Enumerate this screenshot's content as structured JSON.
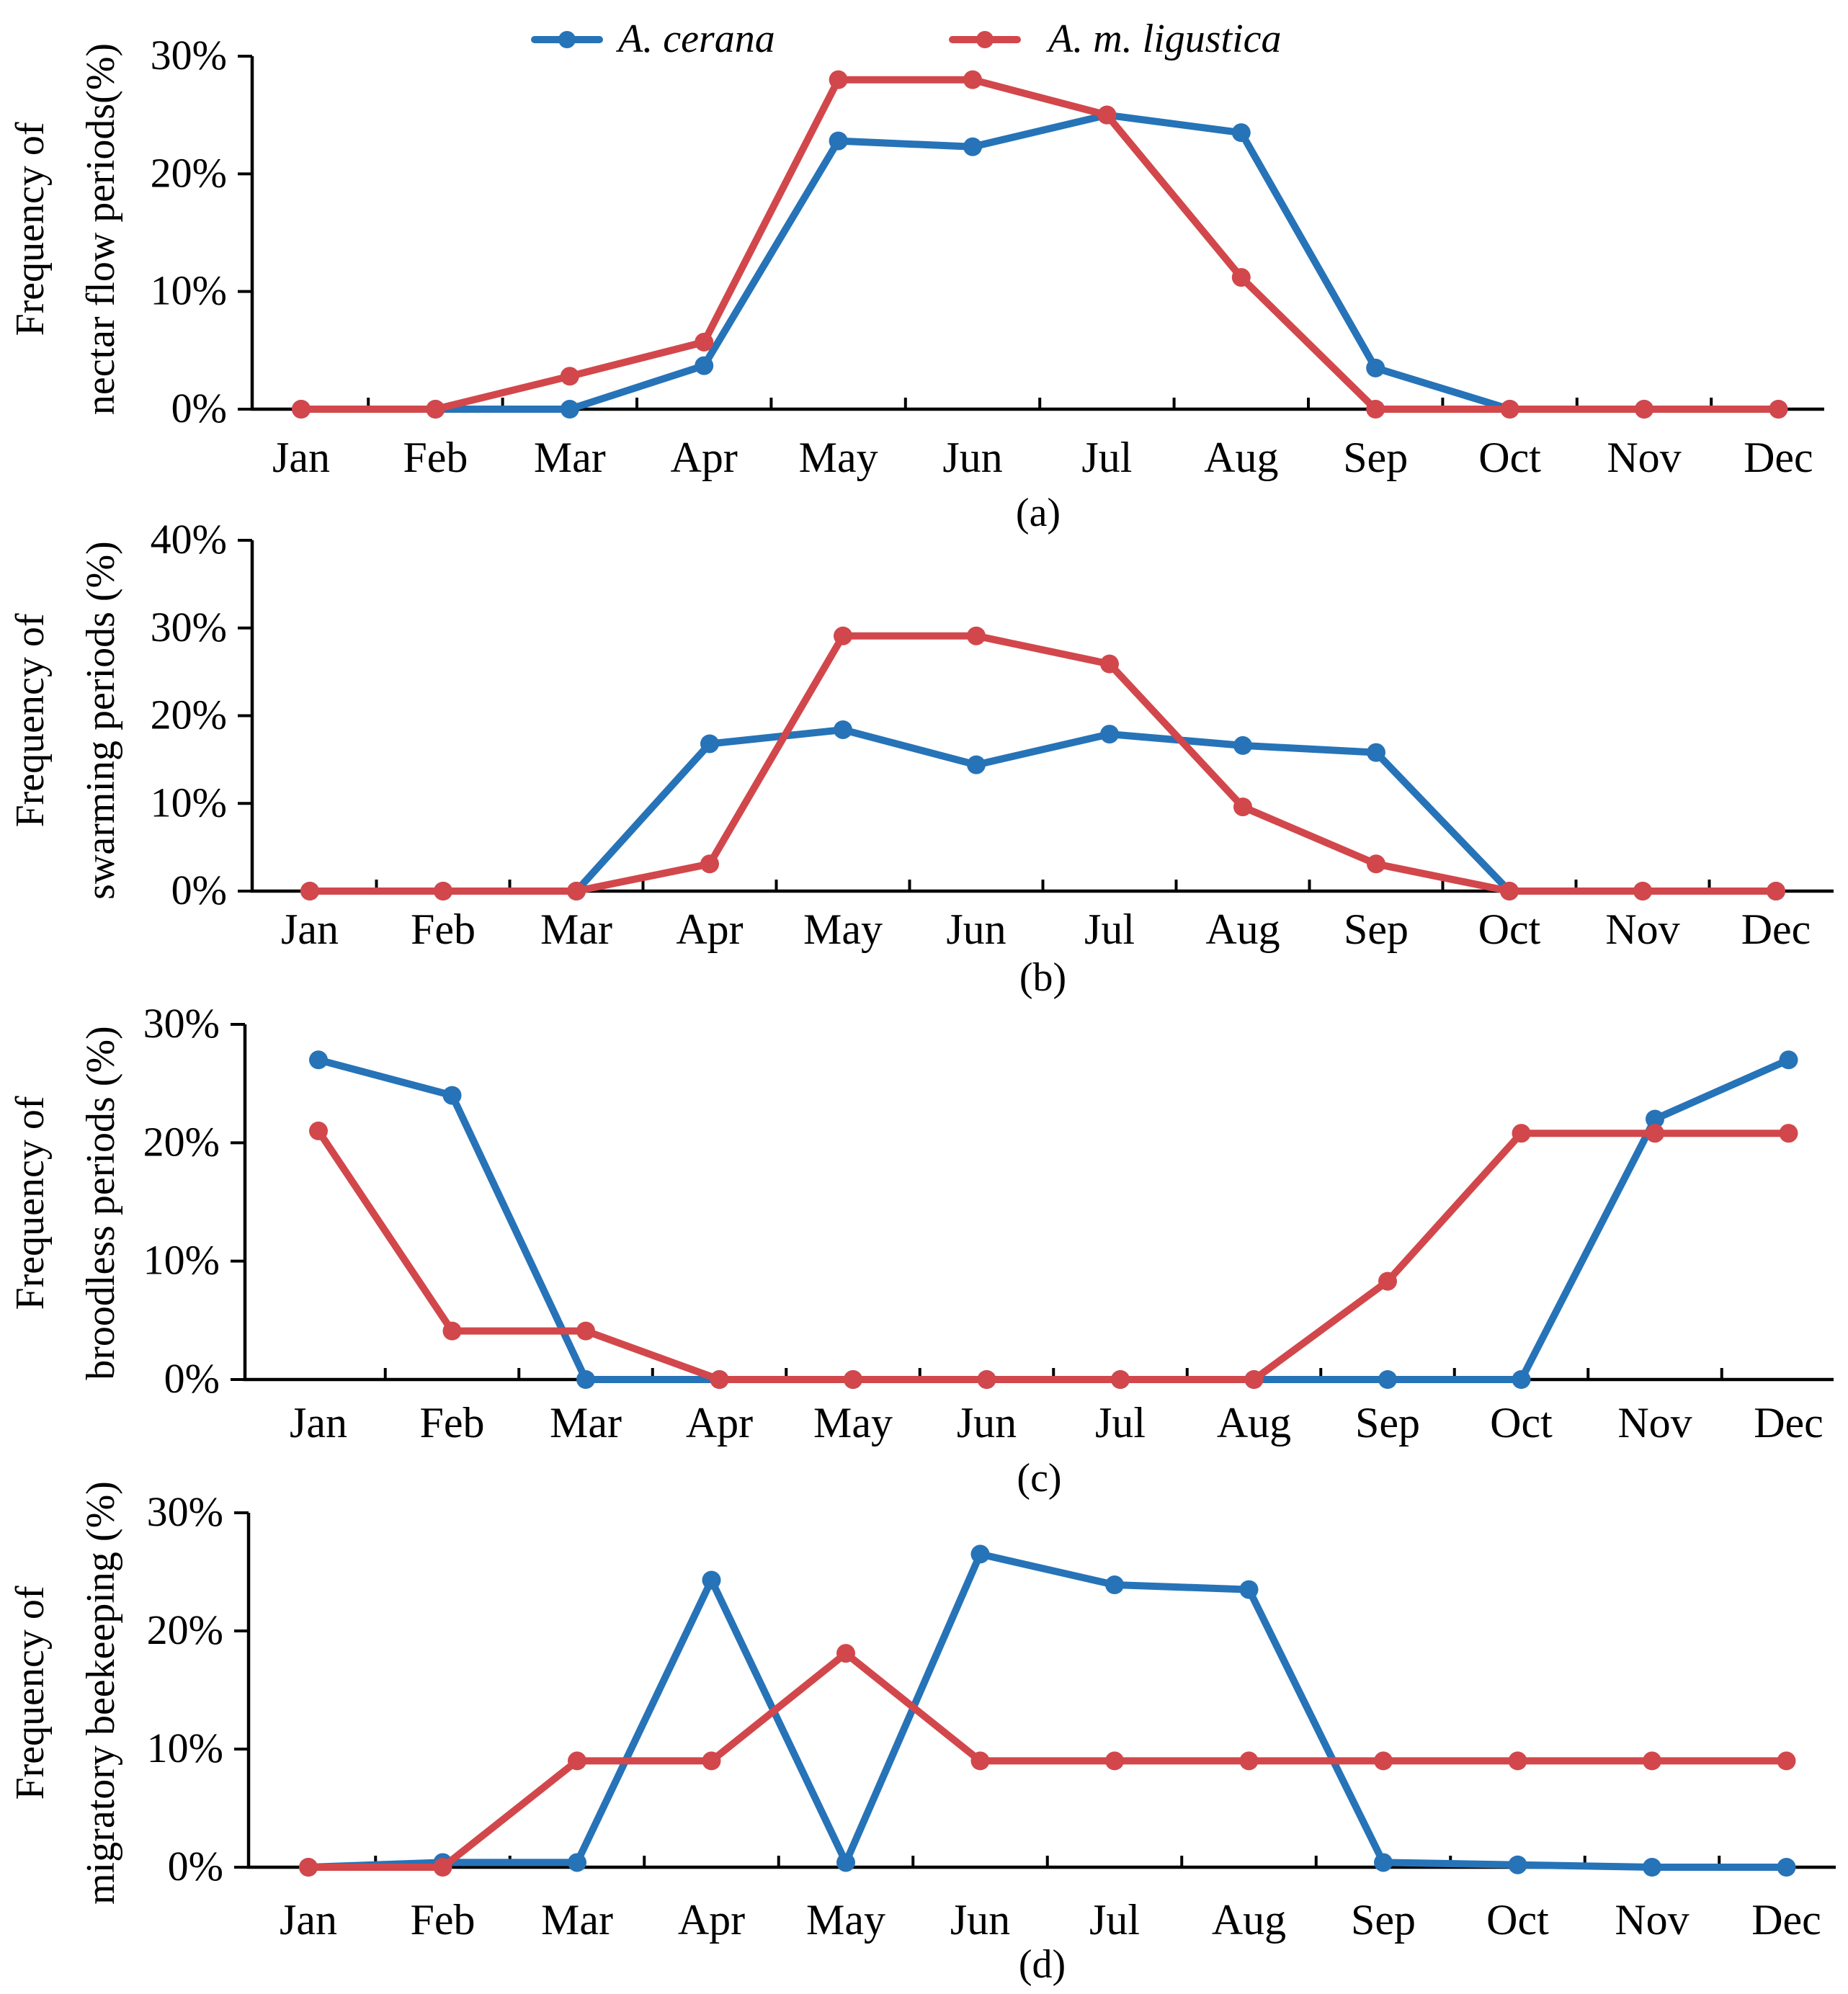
{
  "legend": {
    "series": [
      {
        "name": "A. cerana",
        "color": "#2673b8"
      },
      {
        "name": "A. m. ligustica",
        "color": "#d2474b"
      }
    ]
  },
  "chart_data": [
    {
      "type": "line",
      "panel_label": "(a)",
      "title": "",
      "xlabel": "",
      "ylabel": [
        "Frequency of",
        "nectar flow periods(%)"
      ],
      "categories": [
        "Jan",
        "Feb",
        "Mar",
        "Apr",
        "May",
        "Jun",
        "Jul",
        "Aug",
        "Sep",
        "Oct",
        "Nov",
        "Dec"
      ],
      "ylim": [
        0,
        30
      ],
      "yticks": [
        0,
        10,
        20,
        30
      ],
      "ytick_labels": [
        "0%",
        "10%",
        "20%",
        "30%"
      ],
      "grid": false,
      "series": [
        {
          "name": "A. cerana",
          "values": [
            0,
            0,
            0,
            3.7,
            22.8,
            22.3,
            25,
            23.5,
            3.5,
            0,
            0,
            0
          ]
        },
        {
          "name": "A. m. ligustica",
          "values": [
            0,
            0,
            2.8,
            5.7,
            28,
            28,
            25,
            11.2,
            0,
            0,
            0,
            0
          ]
        }
      ]
    },
    {
      "type": "line",
      "panel_label": "(b)",
      "title": "",
      "xlabel": "",
      "ylabel": [
        "Frequency of",
        "swarming periods (%)"
      ],
      "categories": [
        "Jan",
        "Feb",
        "Mar",
        "Apr",
        "May",
        "Jun",
        "Jul",
        "Aug",
        "Sep",
        "Oct",
        "Nov",
        "Dec"
      ],
      "ylim": [
        0,
        40
      ],
      "yticks": [
        0,
        10,
        20,
        30,
        40
      ],
      "ytick_labels": [
        "0%",
        "10%",
        "20%",
        "30%",
        "40%"
      ],
      "grid": false,
      "series": [
        {
          "name": "A. cerana",
          "values": [
            0,
            0,
            0,
            16.8,
            18.4,
            14.4,
            17.9,
            16.6,
            15.8,
            0,
            0,
            0
          ]
        },
        {
          "name": "A. m. ligustica",
          "values": [
            0,
            0,
            0,
            3.1,
            29.1,
            29.1,
            25.9,
            9.6,
            3.1,
            0,
            0,
            0
          ]
        }
      ]
    },
    {
      "type": "line",
      "panel_label": "(c)",
      "title": "",
      "xlabel": "",
      "ylabel": [
        "Frequency of",
        "broodless periods (%)"
      ],
      "categories": [
        "Jan",
        "Feb",
        "Mar",
        "Apr",
        "May",
        "Jun",
        "Jul",
        "Aug",
        "Sep",
        "Oct",
        "Nov",
        "Dec"
      ],
      "ylim": [
        0,
        30
      ],
      "yticks": [
        0,
        10,
        20,
        30
      ],
      "ytick_labels": [
        "0%",
        "10%",
        "20%",
        "30%"
      ],
      "grid": false,
      "series": [
        {
          "name": "A. cerana",
          "values": [
            27,
            24,
            0,
            0,
            0,
            0,
            0,
            0,
            0,
            0,
            22,
            27
          ]
        },
        {
          "name": "A. m. ligustica",
          "values": [
            21,
            4.1,
            4.1,
            0,
            0,
            0,
            0,
            0,
            8.3,
            20.8,
            20.8,
            20.8
          ]
        }
      ]
    },
    {
      "type": "line",
      "panel_label": "(d)",
      "title": "",
      "xlabel": "",
      "ylabel": [
        "Frequency of",
        "migratory beekeeping (%)"
      ],
      "categories": [
        "Jan",
        "Feb",
        "Mar",
        "Apr",
        "May",
        "Jun",
        "Jul",
        "Aug",
        "Sep",
        "Oct",
        "Nov",
        "Dec"
      ],
      "ylim": [
        0,
        30
      ],
      "yticks": [
        0,
        10,
        20,
        30
      ],
      "ytick_labels": [
        "0%",
        "10%",
        "20%",
        "30%"
      ],
      "grid": false,
      "series": [
        {
          "name": "A. cerana",
          "values": [
            0,
            0.4,
            0.4,
            24.3,
            0.4,
            26.5,
            23.9,
            23.5,
            0.4,
            0.2,
            0,
            0
          ]
        },
        {
          "name": "A. m. ligustica",
          "values": [
            0,
            0,
            9,
            9,
            18.1,
            9,
            9,
            9,
            9,
            9,
            9,
            9
          ]
        }
      ]
    }
  ]
}
